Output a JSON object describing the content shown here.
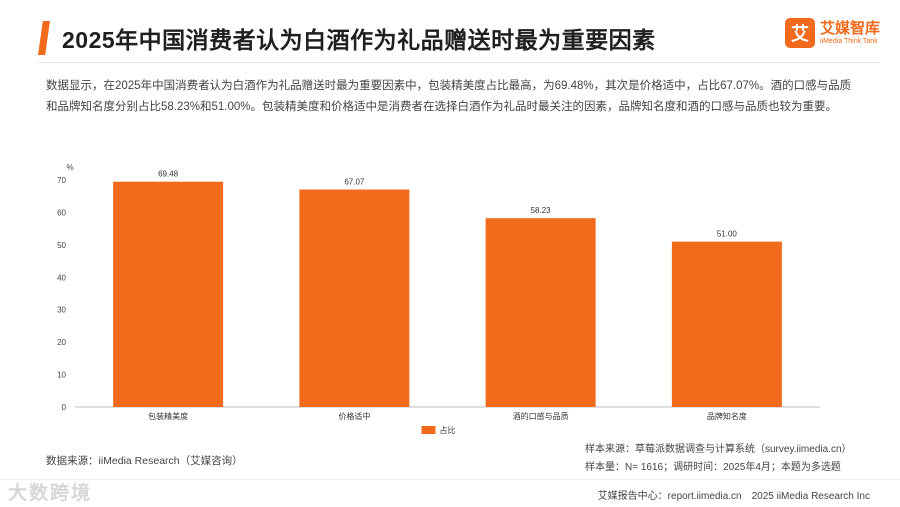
{
  "header": {
    "title": "2025年中国消费者认为白酒作为礼品赠送时最为重要因素",
    "logo_mark": "艾",
    "logo_name": "艾媒智库",
    "logo_subtitle": "iiMedia Think Tank"
  },
  "summary": "数据显示，在2025年中国消费者认为白酒作为礼品赠送时最为重要因素中，包装精美度占比最高，为69.48%，其次是价格适中，占比67.07%。酒的口感与品质和品牌知名度分别占比58.23%和51.00%。包装精美度和价格适中是消费者在选择白酒作为礼品时最关注的因素，品牌知名度和酒的口感与品质也较为重要。",
  "chart_data": {
    "type": "bar",
    "categories": [
      "包装精美度",
      "价格适中",
      "酒的口感与品质",
      "品牌知名度"
    ],
    "values": [
      69.48,
      67.07,
      58.23,
      51.0
    ],
    "value_labels": [
      "69.48",
      "67.07",
      "58.23",
      "51.00"
    ],
    "series_name": "占比",
    "ylabel": "%",
    "ylim": [
      0,
      70
    ],
    "yticks": [
      0,
      10,
      20,
      30,
      40,
      50,
      60,
      70
    ],
    "grid": false,
    "legend": "bottom-center",
    "bar_color": "#f26b1d"
  },
  "source": "数据来源：iiMedia Research（艾媒咨询）",
  "sample": {
    "source": "样本来源：草莓派数据调查与计算系统（survey.iimedia.cn）",
    "size": "样本量：N= 1616；调研时间：2025年4月；本题为多选题"
  },
  "footer": "艾媒报告中心：report.iimedia.cn　2025 iiMedia Research Inc",
  "watermark": "大数跨境",
  "colors": {
    "accent": "#f26b1d",
    "title": "#1f1f1f",
    "text": "#444444"
  }
}
